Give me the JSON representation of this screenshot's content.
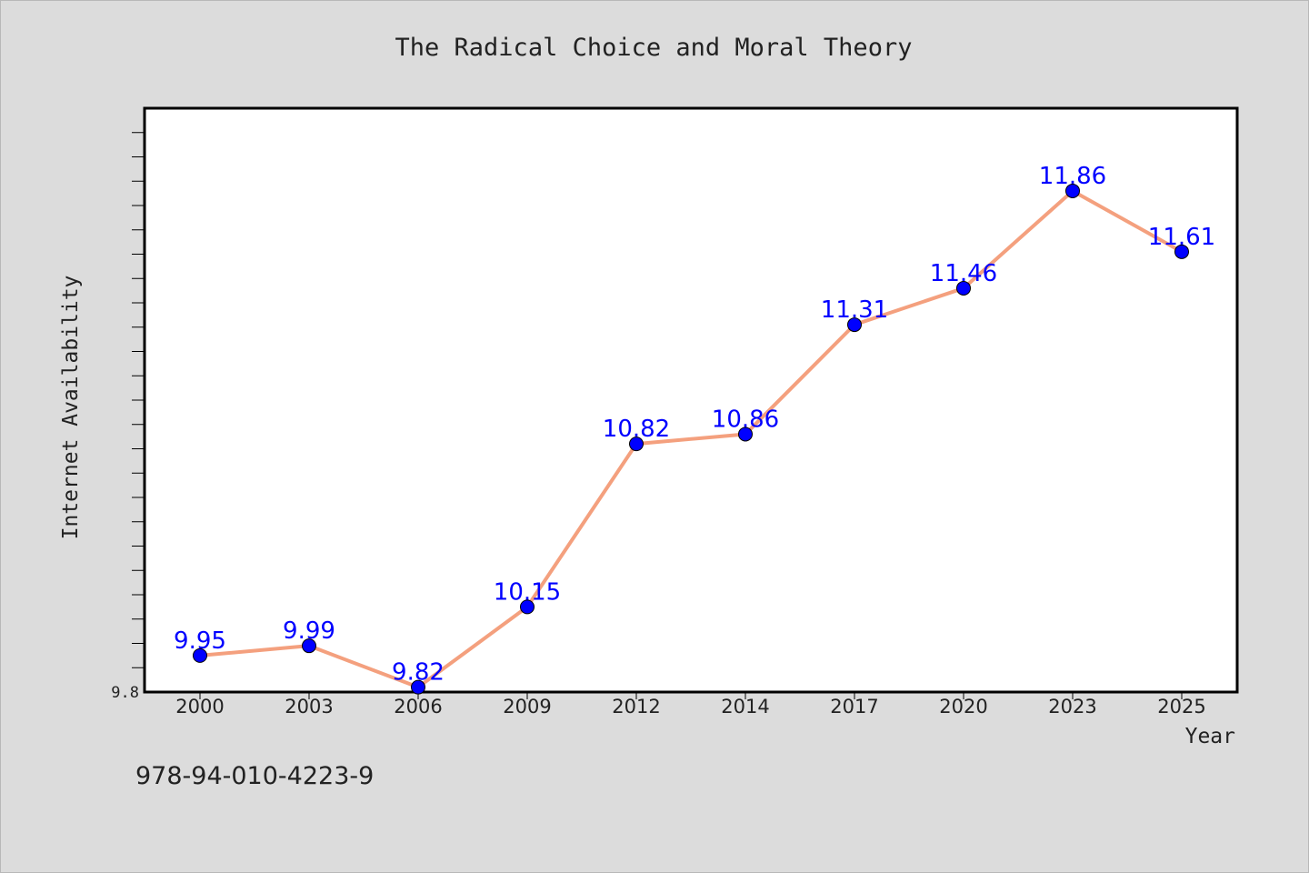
{
  "chart_data": {
    "type": "line",
    "title": "The Radical Choice and Moral Theory",
    "xlabel": "Year",
    "ylabel": "Internet Availability",
    "categories": [
      "2000",
      "2003",
      "2006",
      "2009",
      "2012",
      "2014",
      "2017",
      "2020",
      "2023",
      "2025"
    ],
    "series": [
      {
        "values": [
          9.95,
          9.99,
          9.82,
          10.15,
          10.82,
          10.86,
          11.31,
          11.46,
          11.86,
          11.61
        ],
        "data_labels": [
          "9.95",
          "9.99",
          "9.82",
          "10.15",
          "10.82",
          "10.86",
          "11.31",
          "11.46",
          "11.86",
          "11.61"
        ]
      }
    ],
    "ylim": [
      9.8,
      12.2
    ],
    "ytick_labels": [
      "9.8"
    ],
    "grid": false,
    "legend": "none"
  },
  "footer": {
    "isbn": "978-94-010-4223-9"
  },
  "colors": {
    "background": "#dcdcdc",
    "plot_background": "#ffffff",
    "line": "#f4a07e",
    "marker": "#0000ff",
    "data_label": "#0000ff",
    "text": "#222222"
  }
}
